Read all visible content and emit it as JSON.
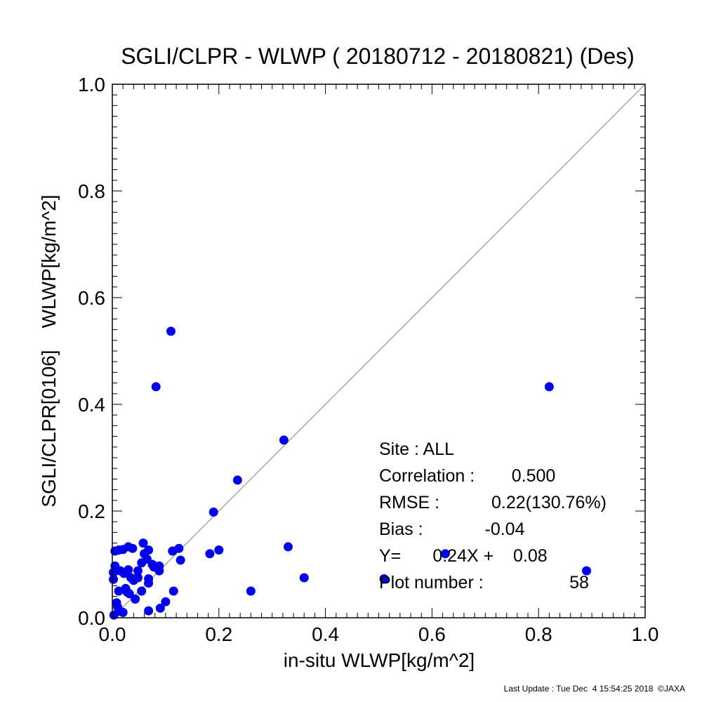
{
  "chart_data": {
    "type": "scatter",
    "title": "SGLI/CLPR - WLWP ( 20180712 - 20180821) (Des)",
    "xlabel": "in-situ WLWP[kg/m^2]",
    "ylabel": "SGLI/CLPR[0106]    WLWP[kg/m^2]",
    "xlim": [
      0,
      1
    ],
    "ylim": [
      0,
      1
    ],
    "x_ticks": [
      "0.0",
      "0.2",
      "0.4",
      "0.6",
      "0.8",
      "1.0"
    ],
    "y_ticks": [
      "0.0",
      "0.2",
      "0.4",
      "0.6",
      "0.8",
      "1.0"
    ],
    "grid": false,
    "reference_line": "1:1",
    "marker_color": "#0000ee",
    "line_color": "#808080",
    "points": [
      {
        "x": 0.11,
        "y": 0.537
      },
      {
        "x": 0.082,
        "y": 0.433
      },
      {
        "x": 0.82,
        "y": 0.433
      },
      {
        "x": 0.322,
        "y": 0.333
      },
      {
        "x": 0.235,
        "y": 0.258
      },
      {
        "x": 0.19,
        "y": 0.198
      },
      {
        "x": 0.33,
        "y": 0.133
      },
      {
        "x": 0.2,
        "y": 0.127
      },
      {
        "x": 0.183,
        "y": 0.12
      },
      {
        "x": 0.128,
        "y": 0.108
      },
      {
        "x": 0.125,
        "y": 0.13
      },
      {
        "x": 0.113,
        "y": 0.125
      },
      {
        "x": 0.89,
        "y": 0.088
      },
      {
        "x": 0.625,
        "y": 0.12
      },
      {
        "x": 0.36,
        "y": 0.075
      },
      {
        "x": 0.51,
        "y": 0.073
      },
      {
        "x": 0.26,
        "y": 0.05
      },
      {
        "x": 0.115,
        "y": 0.05
      },
      {
        "x": 0.1,
        "y": 0.03
      },
      {
        "x": 0.09,
        "y": 0.018
      },
      {
        "x": 0.068,
        "y": 0.013
      },
      {
        "x": 0.005,
        "y": 0.125
      },
      {
        "x": 0.012,
        "y": 0.127
      },
      {
        "x": 0.02,
        "y": 0.128
      },
      {
        "x": 0.03,
        "y": 0.133
      },
      {
        "x": 0.038,
        "y": 0.13
      },
      {
        "x": 0.058,
        "y": 0.14
      },
      {
        "x": 0.068,
        "y": 0.127
      },
      {
        "x": 0.06,
        "y": 0.12
      },
      {
        "x": 0.055,
        "y": 0.103
      },
      {
        "x": 0.065,
        "y": 0.11
      },
      {
        "x": 0.075,
        "y": 0.1
      },
      {
        "x": 0.088,
        "y": 0.097
      },
      {
        "x": 0.005,
        "y": 0.097
      },
      {
        "x": 0.015,
        "y": 0.088
      },
      {
        "x": 0.022,
        "y": 0.083
      },
      {
        "x": 0.03,
        "y": 0.09
      },
      {
        "x": 0.035,
        "y": 0.075
      },
      {
        "x": 0.048,
        "y": 0.075
      },
      {
        "x": 0.048,
        "y": 0.088
      },
      {
        "x": 0.068,
        "y": 0.073
      },
      {
        "x": 0.068,
        "y": 0.065
      },
      {
        "x": 0.088,
        "y": 0.088
      },
      {
        "x": 0.002,
        "y": 0.085
      },
      {
        "x": 0.002,
        "y": 0.072
      },
      {
        "x": 0.012,
        "y": 0.05
      },
      {
        "x": 0.028,
        "y": 0.048
      },
      {
        "x": 0.032,
        "y": 0.045
      },
      {
        "x": 0.043,
        "y": 0.035
      },
      {
        "x": 0.055,
        "y": 0.05
      },
      {
        "x": 0.008,
        "y": 0.028
      },
      {
        "x": 0.01,
        "y": 0.02
      },
      {
        "x": 0.015,
        "y": 0.012
      },
      {
        "x": 0.003,
        "y": 0.005
      },
      {
        "x": 0.025,
        "y": 0.055
      },
      {
        "x": 0.04,
        "y": 0.07
      },
      {
        "x": 0.078,
        "y": 0.095
      },
      {
        "x": 0.02,
        "y": 0.01
      }
    ],
    "stats": [
      {
        "label": "Site : ALL",
        "value": ""
      },
      {
        "label": "Correlation :",
        "value": "0.500"
      },
      {
        "label": "RMSE :",
        "value": "0.22(130.76%)"
      },
      {
        "label": "Bias :",
        "value": "-0.04"
      },
      {
        "label": "Y=",
        "value": "0.24X +    0.08"
      },
      {
        "label": "Plot number :",
        "value": "58"
      }
    ]
  },
  "footer": "Last Update : Tue Dec  4 15:54:25 2018  ©JAXA"
}
